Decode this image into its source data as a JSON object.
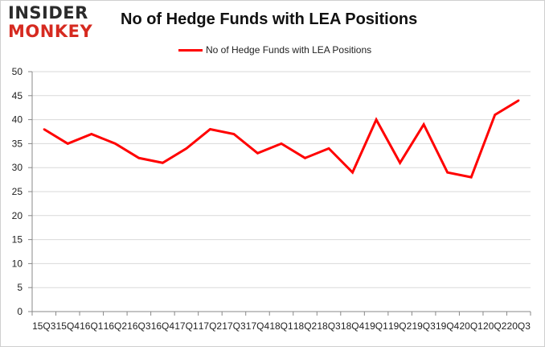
{
  "logo": {
    "line1": "INSIDER",
    "line2": "MONKEY"
  },
  "chart_data": {
    "type": "line",
    "title": "No of Hedge Funds with LEA Positions",
    "xlabel": "",
    "ylabel": "",
    "categories": [
      "2015Q3",
      "2015Q4",
      "2016Q1",
      "2016Q2",
      "2016Q3",
      "2016Q4",
      "2017Q1",
      "2017Q2",
      "2017Q3",
      "2017Q4",
      "2018Q1",
      "2018Q2",
      "2018Q3",
      "2018Q4",
      "2019Q1",
      "2019Q2",
      "2019Q3",
      "2019Q4",
      "2020Q1",
      "2020Q2",
      "2020Q3"
    ],
    "tick_labels": [
      "15Q3",
      "15Q4",
      "16Q1",
      "16Q2",
      "16Q3",
      "16Q4",
      "17Q1",
      "17Q2",
      "17Q3",
      "17Q4",
      "18Q1",
      "18Q2",
      "18Q3",
      "18Q4",
      "19Q1",
      "19Q2",
      "19Q3",
      "19Q4",
      "20Q1",
      "20Q2",
      "20Q3"
    ],
    "series": [
      {
        "name": "No of Hedge Funds with LEA Positions",
        "color": "#ff0000",
        "values": [
          38,
          35,
          37,
          35,
          32,
          31,
          34,
          38,
          37,
          33,
          35,
          32,
          34,
          29,
          40,
          31,
          39,
          29,
          28,
          41,
          44
        ]
      }
    ],
    "ylim": [
      0,
      50
    ],
    "yticks": [
      0,
      5,
      10,
      15,
      20,
      25,
      30,
      35,
      40,
      45,
      50
    ],
    "grid": true,
    "legend_position": "top"
  }
}
